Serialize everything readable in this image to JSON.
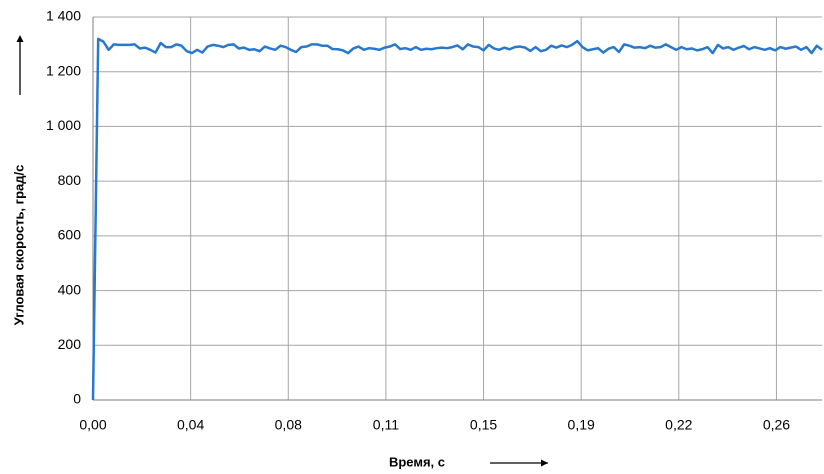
{
  "chart_data": {
    "type": "line",
    "x_label": "Время, с",
    "y_label": "Угловая скорость, град/с",
    "xlim": [
      0,
      0.28
    ],
    "ylim": [
      0,
      1400
    ],
    "xticks": [
      {
        "value": 0,
        "label": "0,00"
      },
      {
        "value": 0.0375,
        "label": "0,04"
      },
      {
        "value": 0.075,
        "label": "0,08"
      },
      {
        "value": 0.1125,
        "label": "0,11"
      },
      {
        "value": 0.15,
        "label": "0,15"
      },
      {
        "value": 0.1875,
        "label": "0,19"
      },
      {
        "value": 0.225,
        "label": "0,22"
      },
      {
        "value": 0.2625,
        "label": "0,26"
      }
    ],
    "yticks": [
      0,
      200,
      400,
      600,
      800,
      {
        "value": 1000,
        "label": "1 000"
      },
      {
        "value": 1200,
        "label": "1 200"
      },
      {
        "value": 1400,
        "label": "1 400"
      }
    ],
    "grid": true,
    "series": [
      {
        "color": "#2878cc",
        "x": [
          0,
          0.002,
          0.004,
          0.006,
          0.008,
          0.01,
          0.012,
          0.014,
          0.016,
          0.018,
          0.02,
          0.022,
          0.024,
          0.026,
          0.028,
          0.03,
          0.032,
          0.034,
          0.036,
          0.038,
          0.04,
          0.042,
          0.044,
          0.046,
          0.048,
          0.05,
          0.052,
          0.054,
          0.056,
          0.058,
          0.06,
          0.062,
          0.064,
          0.066,
          0.068,
          0.07,
          0.072,
          0.074,
          0.076,
          0.078,
          0.08,
          0.082,
          0.084,
          0.086,
          0.088,
          0.09,
          0.092,
          0.094,
          0.096,
          0.098,
          0.1,
          0.102,
          0.104,
          0.106,
          0.108,
          0.11,
          0.112,
          0.114,
          0.116,
          0.118,
          0.12,
          0.122,
          0.124,
          0.126,
          0.128,
          0.13,
          0.132,
          0.134,
          0.136,
          0.138,
          0.14,
          0.142,
          0.144,
          0.146,
          0.148,
          0.15,
          0.152,
          0.154,
          0.156,
          0.158,
          0.16,
          0.162,
          0.164,
          0.166,
          0.168,
          0.17,
          0.172,
          0.174,
          0.176,
          0.178,
          0.18,
          0.182,
          0.184,
          0.186,
          0.188,
          0.19,
          0.192,
          0.194,
          0.196,
          0.198,
          0.2,
          0.202,
          0.204,
          0.206,
          0.208,
          0.21,
          0.212,
          0.214,
          0.216,
          0.218,
          0.22,
          0.222,
          0.224,
          0.226,
          0.228,
          0.23,
          0.232,
          0.234,
          0.236,
          0.238,
          0.24,
          0.242,
          0.244,
          0.246,
          0.248,
          0.25,
          0.252,
          0.254,
          0.256,
          0.258,
          0.26,
          0.262,
          0.264,
          0.266,
          0.268,
          0.27,
          0.272,
          0.274,
          0.276,
          0.278,
          0.28
        ],
        "values": [
          0,
          1320,
          1310,
          1280,
          1300,
          1298,
          1298,
          1298,
          1300,
          1285,
          1288,
          1280,
          1270,
          1305,
          1290,
          1290,
          1300,
          1295,
          1275,
          1268,
          1280,
          1270,
          1292,
          1298,
          1295,
          1290,
          1298,
          1300,
          1285,
          1288,
          1280,
          1282,
          1275,
          1292,
          1285,
          1280,
          1295,
          1290,
          1280,
          1272,
          1290,
          1292,
          1300,
          1300,
          1295,
          1295,
          1283,
          1282,
          1278,
          1268,
          1285,
          1292,
          1280,
          1286,
          1284,
          1280,
          1288,
          1292,
          1300,
          1283,
          1286,
          1280,
          1290,
          1280,
          1284,
          1282,
          1286,
          1288,
          1286,
          1290,
          1296,
          1282,
          1300,
          1292,
          1290,
          1278,
          1298,
          1285,
          1280,
          1288,
          1282,
          1290,
          1292,
          1288,
          1276,
          1290,
          1275,
          1280,
          1295,
          1288,
          1296,
          1290,
          1298,
          1312,
          1290,
          1278,
          1282,
          1286,
          1270,
          1284,
          1290,
          1272,
          1300,
          1295,
          1288,
          1290,
          1286,
          1295,
          1288,
          1290,
          1300,
          1290,
          1280,
          1290,
          1282,
          1285,
          1278,
          1282,
          1290,
          1268,
          1298,
          1285,
          1290,
          1280,
          1288,
          1294,
          1282,
          1290,
          1285,
          1280,
          1286,
          1278,
          1290,
          1284,
          1288,
          1292,
          1280,
          1290,
          1268,
          1295,
          1280
        ]
      }
    ]
  }
}
